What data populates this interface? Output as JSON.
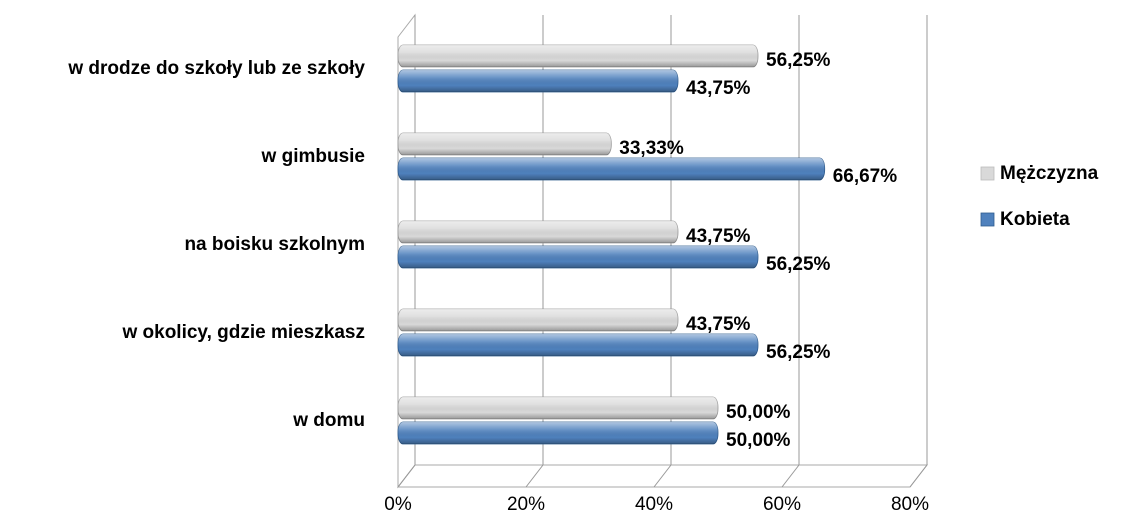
{
  "chart_data": {
    "type": "bar",
    "orientation": "horizontal",
    "categories": [
      "w drodze do szkoły lub ze szkoły",
      "w gimbusie",
      "na boisku szkolnym",
      "w okolicy, gdzie mieszkasz",
      "w domu"
    ],
    "series": [
      {
        "name": "Mężczyzna",
        "color": "#d9d9d9",
        "values": [
          56.25,
          33.33,
          43.75,
          43.75,
          50.0
        ],
        "value_labels": [
          "56,25%",
          "33,33%",
          "43,75%",
          "43,75%",
          "50,00%"
        ]
      },
      {
        "name": "Kobieta",
        "color": "#4f81bd",
        "values": [
          43.75,
          66.67,
          56.25,
          56.25,
          50.0
        ],
        "value_labels": [
          "43,75%",
          "66,67%",
          "56,25%",
          "56,25%",
          "50,00%"
        ]
      }
    ],
    "xlim": [
      0,
      80
    ],
    "xticks": [
      {
        "value": 0,
        "label": "0%"
      },
      {
        "value": 20,
        "label": "20%"
      },
      {
        "value": 40,
        "label": "40%"
      },
      {
        "value": 60,
        "label": "60%"
      },
      {
        "value": 80,
        "label": "80%"
      }
    ],
    "grid": true,
    "legend": "right"
  }
}
